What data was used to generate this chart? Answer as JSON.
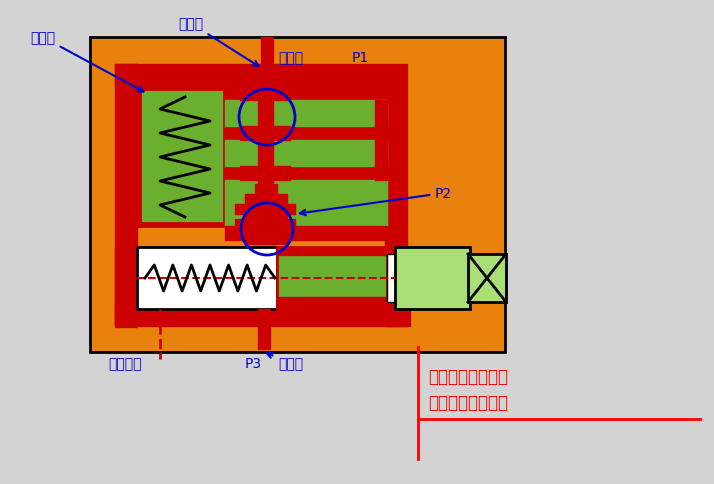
{
  "bg_color": "#d3d3d3",
  "title_text1": "当出口压力降底时",
  "title_text2": "当出口压力升高时",
  "label_节流口": "节流口",
  "label_减压口": "减压口",
  "label_进油口": "进油口",
  "label_P1": "P1",
  "label_P2": "P2",
  "label_P3": "P3",
  "label_泄露油口": "泄露油口",
  "label_出油口": "出油口",
  "colors": {
    "orange": "#E8820C",
    "red": "#CC0000",
    "green": "#6AAF2E",
    "light_green": "#AADE77",
    "white": "#FFFFFF",
    "blue": "#0000CC",
    "black": "#000000",
    "gray_bg": "#D0D0D0"
  }
}
